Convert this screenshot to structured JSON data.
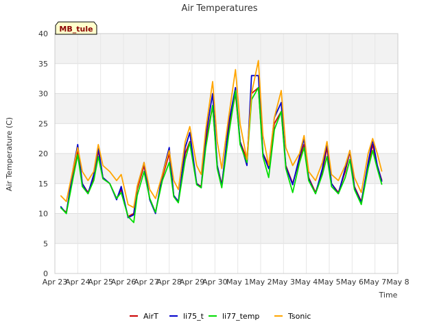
{
  "chart_data": {
    "type": "line",
    "title": "Air Temperatures",
    "xlabel": "Time",
    "ylabel": "Air Temperature (C)",
    "ylim": [
      0,
      40
    ],
    "yticks": [
      0,
      5,
      10,
      15,
      20,
      25,
      30,
      35,
      40
    ],
    "xlim": [
      0,
      15
    ],
    "xticks": [
      "Apr 23",
      "Apr 24",
      "Apr 25",
      "Apr 26",
      "Apr 27",
      "Apr 28",
      "Apr 29",
      "Apr 30",
      "May 1",
      "May 2",
      "May 3",
      "May 4",
      "May 5",
      "May 6",
      "May 7",
      "May 8"
    ],
    "badge": "MB_tule",
    "grid": true,
    "legend_position": "bottom-center",
    "series": [
      {
        "name": "AirT",
        "color": "#cc0000",
        "x": [
          0.25,
          0.5,
          0.8,
          1.0,
          1.2,
          1.45,
          1.7,
          1.9,
          2.1,
          2.4,
          2.7,
          2.9,
          3.2,
          3.45,
          3.6,
          3.9,
          4.15,
          4.4,
          4.7,
          5.0,
          5.2,
          5.4,
          5.7,
          5.9,
          6.2,
          6.4,
          6.6,
          6.9,
          7.1,
          7.3,
          7.6,
          7.9,
          8.1,
          8.4,
          8.6,
          8.9,
          9.1,
          9.35,
          9.6,
          9.9,
          10.1,
          10.4,
          10.7,
          10.9,
          11.1,
          11.4,
          11.7,
          11.9,
          12.1,
          12.4,
          12.7,
          12.9,
          13.1,
          13.4,
          13.7,
          13.9,
          14.1,
          14.3
        ],
        "y": [
          11,
          10.2,
          17,
          20.5,
          15,
          13.5,
          16,
          20.5,
          16,
          15,
          12.5,
          14,
          9.5,
          10,
          14,
          18,
          12.5,
          10.2,
          16,
          20,
          13,
          12,
          20,
          22,
          15,
          14.5,
          22,
          28,
          18,
          14.8,
          24,
          30,
          22,
          19,
          30,
          31,
          20,
          18,
          25,
          27,
          18,
          15,
          19,
          21.5,
          16,
          13.5,
          17,
          21,
          15,
          13.5,
          17,
          20.3,
          14.5,
          12,
          18,
          21.5,
          18,
          15.5
        ]
      },
      {
        "name": "li75_t",
        "color": "#0000cc",
        "x": [
          0.25,
          0.5,
          0.8,
          1.0,
          1.2,
          1.45,
          1.7,
          1.9,
          2.1,
          2.4,
          2.7,
          2.9,
          3.2,
          3.45,
          3.6,
          3.9,
          4.15,
          4.4,
          4.7,
          5.0,
          5.2,
          5.4,
          5.7,
          5.9,
          6.2,
          6.4,
          6.6,
          6.9,
          7.1,
          7.3,
          7.6,
          7.9,
          8.1,
          8.4,
          8.6,
          8.9,
          9.1,
          9.35,
          9.6,
          9.9,
          10.1,
          10.4,
          10.7,
          10.9,
          11.1,
          11.4,
          11.7,
          11.9,
          12.1,
          12.4,
          12.7,
          12.9,
          13.1,
          13.4,
          13.7,
          13.9,
          14.1,
          14.3
        ],
        "y": [
          11.2,
          10,
          17.5,
          21.5,
          15,
          13.3,
          16.5,
          21,
          16,
          15,
          12.3,
          14.5,
          9.3,
          9.8,
          14.5,
          18.5,
          12.3,
          10,
          16.5,
          21,
          13,
          12,
          21,
          23.5,
          15,
          14.3,
          23,
          30,
          18,
          14.5,
          25,
          31,
          22,
          18,
          33,
          33,
          20,
          17.5,
          26,
          28.5,
          17.8,
          14.8,
          19.5,
          22.5,
          15.8,
          13.3,
          17.5,
          21.8,
          15,
          13.3,
          17.5,
          20.5,
          14.3,
          11.8,
          18.5,
          22.3,
          18,
          15.3
        ]
      },
      {
        "name": "li77_temp",
        "color": "#00dd00",
        "x": [
          0.25,
          0.5,
          0.8,
          1.0,
          1.2,
          1.45,
          1.7,
          1.9,
          2.1,
          2.4,
          2.7,
          2.9,
          3.2,
          3.45,
          3.6,
          3.9,
          4.15,
          4.4,
          4.7,
          5.0,
          5.2,
          5.4,
          5.7,
          5.9,
          6.2,
          6.4,
          6.6,
          6.9,
          7.1,
          7.3,
          7.6,
          7.9,
          8.1,
          8.4,
          8.6,
          8.9,
          9.1,
          9.35,
          9.6,
          9.9,
          10.1,
          10.4,
          10.7,
          10.9,
          11.1,
          11.4,
          11.7,
          11.9,
          12.1,
          12.4,
          12.7,
          12.9,
          13.1,
          13.4,
          13.7,
          13.9,
          14.1,
          14.3
        ],
        "y": [
          11,
          10,
          16,
          19.8,
          14.5,
          13.3,
          15.5,
          19.5,
          15.8,
          15,
          12.5,
          13.5,
          9.5,
          8.5,
          13,
          17,
          12.5,
          10.2,
          15.5,
          18.5,
          12.8,
          11.8,
          19,
          21.8,
          14.8,
          14.3,
          21,
          28,
          17.5,
          14.3,
          23,
          30.5,
          21.5,
          18.5,
          29,
          31,
          19.5,
          16,
          24,
          27,
          17.5,
          13.5,
          18.5,
          21,
          15.5,
          13.3,
          16.5,
          19.5,
          14.5,
          13.3,
          16,
          19,
          14,
          11.5,
          17.5,
          20.5,
          17.5,
          14.8
        ]
      },
      {
        "name": "Tsonic",
        "color": "#ffa500",
        "x": [
          0.25,
          0.5,
          0.8,
          1.0,
          1.2,
          1.45,
          1.7,
          1.9,
          2.1,
          2.4,
          2.7,
          2.9,
          3.2,
          3.45,
          3.6,
          3.9,
          4.15,
          4.4,
          4.7,
          5.0,
          5.2,
          5.4,
          5.7,
          5.9,
          6.2,
          6.4,
          6.6,
          6.9,
          7.1,
          7.3,
          7.6,
          7.9,
          8.1,
          8.4,
          8.6,
          8.9,
          9.1,
          9.35,
          9.6,
          9.9,
          10.1,
          10.4,
          10.7,
          10.9,
          11.1,
          11.4,
          11.7,
          11.9,
          12.1,
          12.4,
          12.7,
          12.9,
          13.1,
          13.4,
          13.7,
          13.9,
          14.1,
          14.3
        ],
        "y": [
          13,
          12,
          17.5,
          21,
          17,
          15.5,
          17,
          21.5,
          18,
          17,
          15.5,
          16.5,
          11.5,
          11,
          14.5,
          18.5,
          14,
          12.5,
          16.5,
          20.5,
          15.5,
          14,
          22,
          24.5,
          18,
          16.5,
          24,
          32,
          22,
          17.5,
          26,
          34,
          25,
          19,
          30,
          35.5,
          23,
          18,
          26,
          30.5,
          21,
          18,
          20,
          23,
          17,
          15.5,
          18.5,
          22,
          16.5,
          15.5,
          18,
          20.5,
          16,
          13.5,
          20,
          22.5,
          20,
          17
        ]
      }
    ]
  }
}
